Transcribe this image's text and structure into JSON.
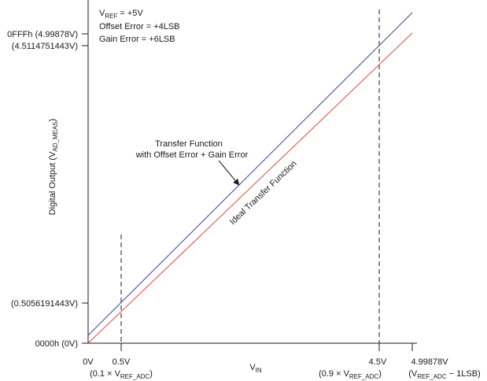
{
  "annotations": {
    "vref_main": "V",
    "vref_sub": "REF",
    "vref_val": " = +5V",
    "offset": "Offset Error = +4LSB",
    "gain": "Gain Error = +6LSB"
  },
  "y_labels": {
    "top": "0FFFh (4.99878V)",
    "second": "(4.5114751443V)",
    "low": "(0.5056191443V)",
    "zero": "0000h (0V)"
  },
  "x_labels": {
    "zero": "0V",
    "half": "0.5V",
    "half_sub_prefix": "(0.1 × V",
    "half_sub_sub": "REF_ADC",
    "half_sub_suffix": ")",
    "four5": "4.5V",
    "four5_sub_prefix": "(0.9 × V",
    "four5_sub_sub": "REF_ADC",
    "four5_sub_suffix": ")",
    "max": "4.99878V",
    "max_sub_prefix": "(V",
    "max_sub_sub": "REF_ADC",
    "max_sub_suffix": " − 1LSB)"
  },
  "axis_titles": {
    "x_main": "V",
    "x_sub": "IN",
    "y_main": "Digital Output (V",
    "y_sub": "AD_MEAS",
    "y_suffix": ")"
  },
  "callouts": {
    "transfer_line1": "Transfer Function",
    "transfer_line2": "with Offset Error + Gain Error",
    "ideal": "Ideal Transfer Function"
  },
  "colors": {
    "ideal": "#e8453c",
    "measured": "#3b3b9a",
    "axis": "#1a1a1a"
  },
  "chart_data": {
    "type": "line",
    "xlabel": "VIN",
    "ylabel": "Digital Output (VAD_MEAS)",
    "x_ticks": [
      0,
      0.5,
      4.5,
      4.99878
    ],
    "y_ticks": [
      0,
      0.5056191443,
      4.5114751443,
      4.99878
    ],
    "series": [
      {
        "name": "Ideal Transfer Function",
        "x": [
          0,
          5.0
        ],
        "y": [
          0,
          4.52
        ]
      },
      {
        "name": "Transfer Function with Offset Error + Gain Error",
        "x": [
          0,
          5.0
        ],
        "y": [
          0.1,
          4.99878
        ]
      }
    ]
  }
}
